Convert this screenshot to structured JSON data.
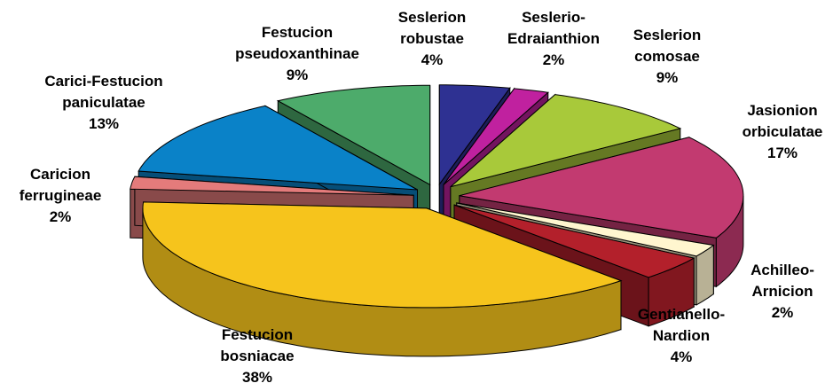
{
  "chart_data": {
    "type": "pie3d",
    "categories": [
      "Seslerion robustae",
      "Seslerio-Edraianthion",
      "Seslerion comosae",
      "Jasionion orbiculatae",
      "Achilleo-Arnicion",
      "Gentianello-Nardion",
      "Festucion bosniacae",
      "Caricion ferrugineae",
      "Carici-Festucion paniculatae",
      "Festucion pseudoxanthinae"
    ],
    "values": [
      4,
      2,
      9,
      17,
      2,
      4,
      38,
      2,
      13,
      9
    ],
    "value_labels": [
      "4%",
      "2%",
      "9%",
      "17%",
      "2%",
      "4%",
      "38%",
      "2%",
      "13%",
      "9%"
    ],
    "colors": [
      "#2e3192",
      "#c0219f",
      "#a8c93a",
      "#c23a70",
      "#fff6cf",
      "#b3202b",
      "#f6c41c",
      "#e47b7b",
      "#0a82c8",
      "#4dab6b"
    ]
  }
}
